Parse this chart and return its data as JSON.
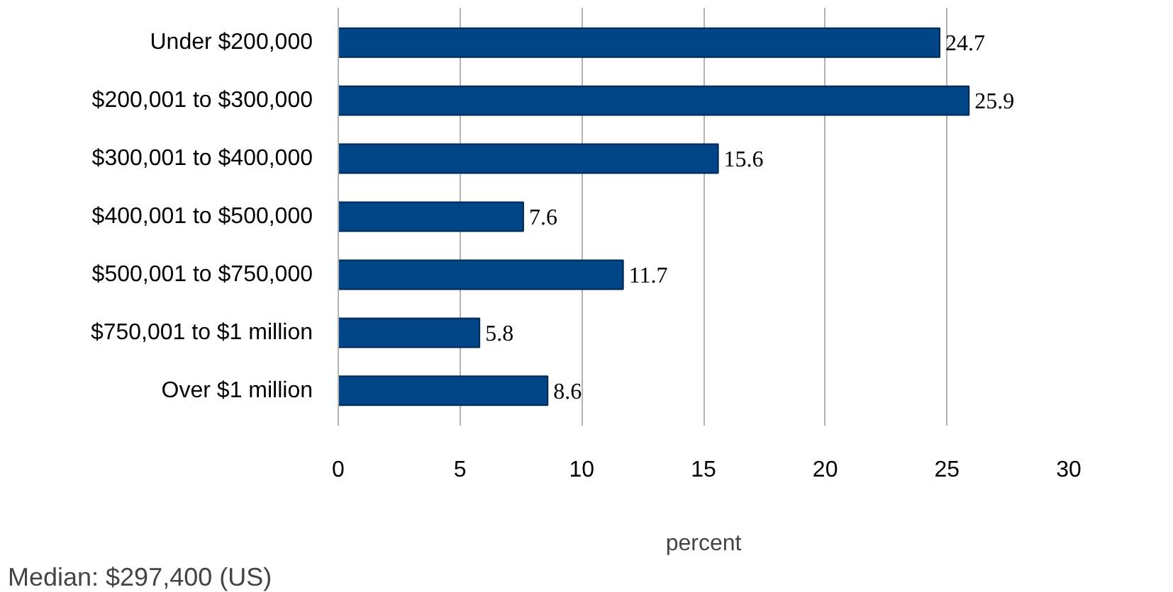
{
  "chart_data": {
    "type": "bar",
    "orientation": "horizontal",
    "categories": [
      "Under $200,000",
      "$200,001 to $300,000",
      "$300,001 to $400,000",
      "$400,001 to $500,000",
      "$500,001 to $750,000",
      "$750,001 to $1 million",
      "Over $1 million"
    ],
    "values": [
      24.7,
      25.9,
      15.6,
      7.6,
      11.7,
      5.8,
      8.6
    ],
    "color": "#004586",
    "xlim": [
      0,
      30
    ],
    "xticks": [
      0,
      5,
      10,
      15,
      20,
      25,
      30
    ],
    "xlabel": "percent",
    "grid": "x",
    "data_labels": true,
    "annotations": [
      "Median:  $297,400 (US)"
    ]
  }
}
